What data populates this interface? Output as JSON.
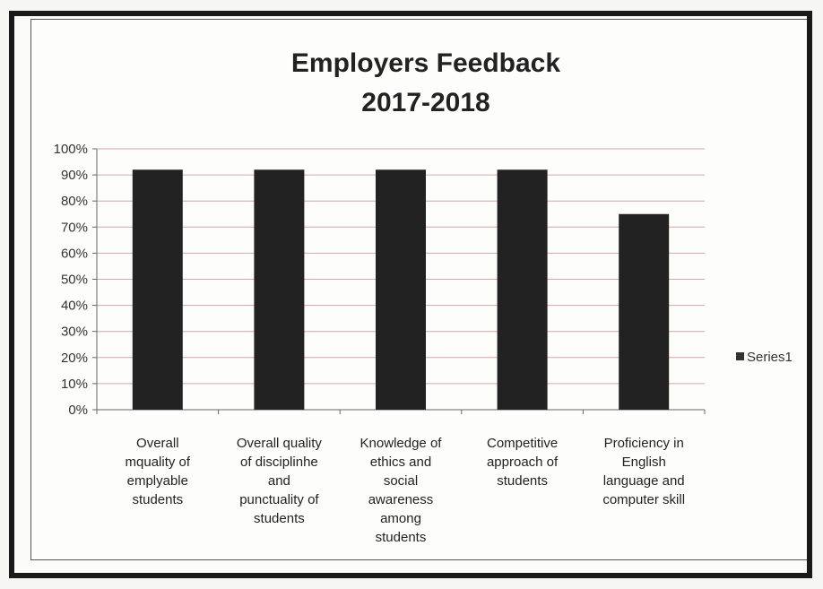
{
  "chart_data": {
    "type": "bar",
    "title_lines": [
      "Employers Feedback",
      "2017-2018"
    ],
    "categories": [
      [
        "Overall",
        "mquality of",
        "emplyable",
        "students"
      ],
      [
        "Overall quality",
        "of disciplinhe",
        "and",
        "punctuality of",
        "students"
      ],
      [
        "Knowledge of",
        "ethics and",
        "social",
        "awareness",
        "among",
        "students"
      ],
      [
        "Competitive",
        "approach of",
        "students"
      ],
      [
        "Proficiency in",
        "English",
        "language and",
        "computer skill"
      ]
    ],
    "series": [
      {
        "name": "Series1",
        "values": [
          0.92,
          0.92,
          0.92,
          0.92,
          0.75
        ]
      }
    ],
    "ylim": [
      0,
      1
    ],
    "y_ticks": [
      "0%",
      "10%",
      "20%",
      "30%",
      "40%",
      "50%",
      "60%",
      "70%",
      "80%",
      "90%",
      "100%"
    ],
    "bar_color": "#222222",
    "grid_color": "#d7a3ad",
    "grid": true,
    "legend_position": "right"
  }
}
